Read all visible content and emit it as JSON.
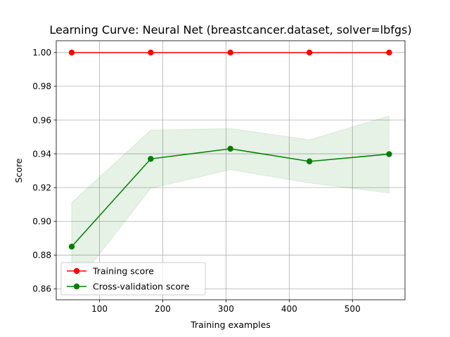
{
  "chart_data": {
    "type": "line",
    "title": "Learning Curve: Neural Net (breastcancer.dataset, solver=lbfgs)",
    "xlabel": "Training examples",
    "ylabel": "Score",
    "xlim": [
      31.6,
      583.1
    ],
    "ylim": [
      0.8535,
      1.007
    ],
    "x_ticks": [
      100,
      200,
      300,
      400,
      500
    ],
    "y_ticks": [
      0.86,
      0.88,
      0.9,
      0.92,
      0.94,
      0.96,
      0.98,
      1.0
    ],
    "y_tick_labels": [
      "0.86",
      "0.88",
      "0.90",
      "0.92",
      "0.94",
      "0.96",
      "0.98",
      "1.00"
    ],
    "grid": true,
    "legend_position": "lower-left",
    "x": [
      56,
      181,
      307,
      432,
      558
    ],
    "series": [
      {
        "name": "Training score",
        "color": "#ff0000",
        "values": [
          1.0,
          1.0,
          1.0,
          1.0,
          1.0
        ],
        "band_lower": [
          1.0,
          1.0,
          1.0,
          1.0,
          1.0
        ],
        "band_upper": [
          1.0,
          1.0,
          1.0,
          1.0,
          1.0
        ],
        "band_color": "#ff0000"
      },
      {
        "name": "Cross-validation score",
        "color": "#008000",
        "values": [
          0.885,
          0.937,
          0.943,
          0.9355,
          0.9398
        ],
        "band_lower": [
          0.8595,
          0.9195,
          0.9306,
          0.9227,
          0.9168
        ],
        "band_upper": [
          0.9111,
          0.954,
          0.955,
          0.9483,
          0.9624
        ],
        "band_color": "#008000"
      }
    ]
  }
}
